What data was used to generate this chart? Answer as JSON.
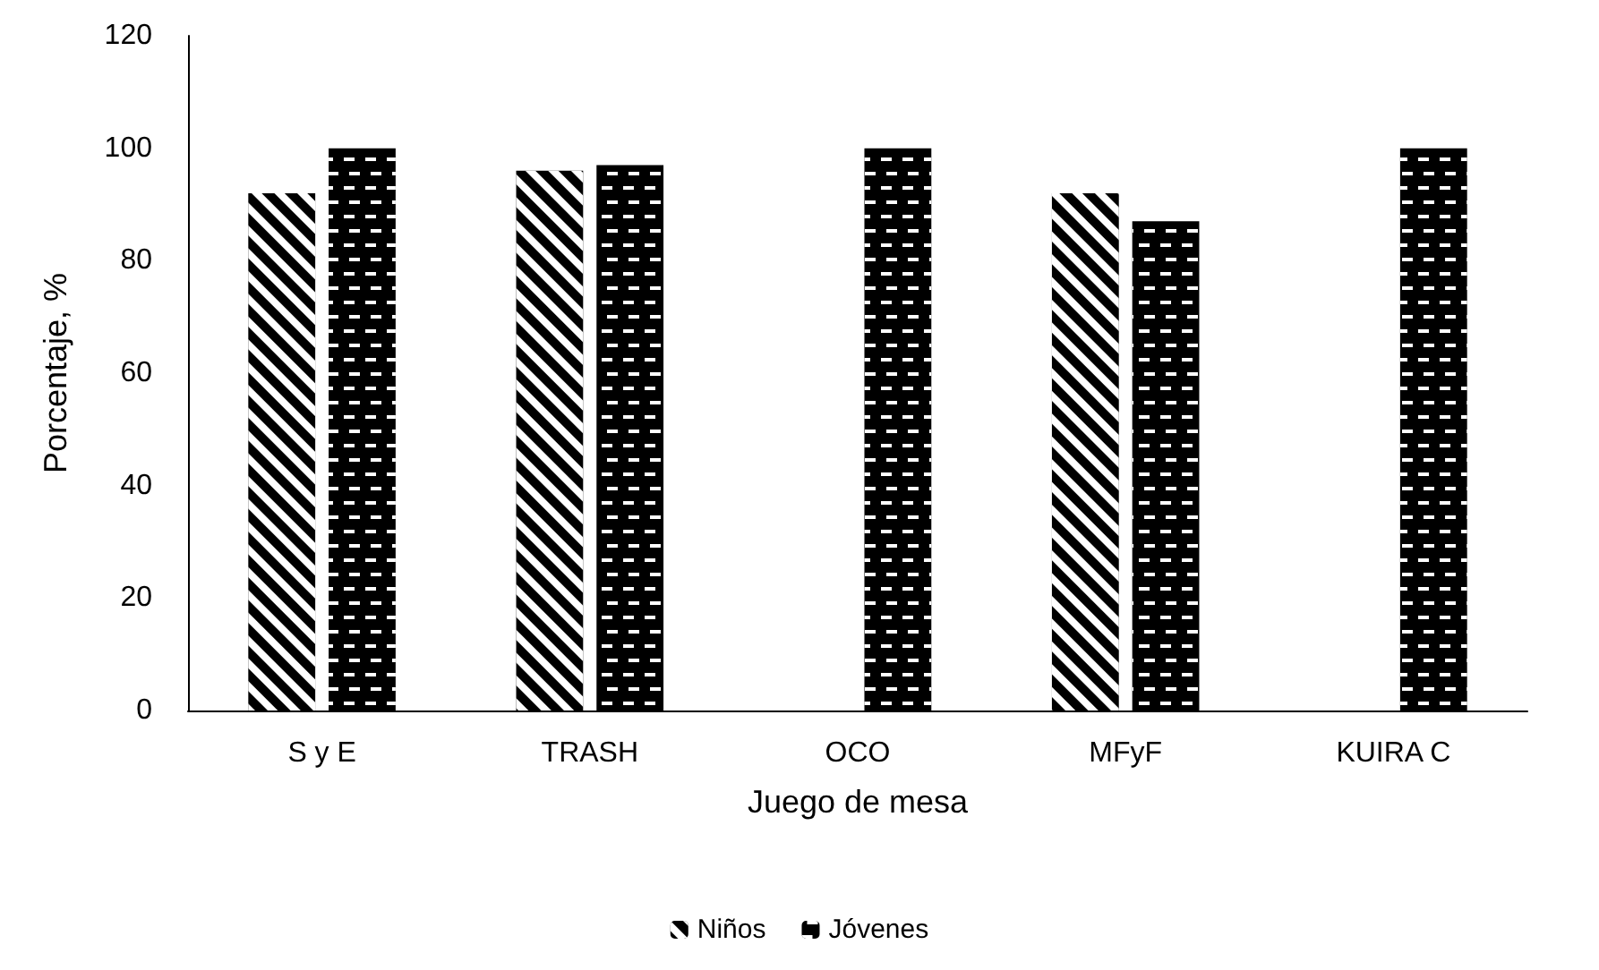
{
  "chart_data": {
    "type": "bar",
    "xlabel": "Juego de mesa",
    "ylabel": "Porcentaje, %",
    "categories": [
      "S y E",
      "TRASH",
      "OCO",
      "MFyF",
      "KUIRA C"
    ],
    "series": [
      {
        "name": "Niños",
        "color": "#000000",
        "values": [
          92,
          96,
          0,
          92,
          0
        ]
      },
      {
        "name": "Jóvenes",
        "color": "#000000",
        "values": [
          100,
          97,
          100,
          87,
          100
        ]
      }
    ],
    "ylim": [
      0,
      120
    ],
    "yticks": [
      0,
      20,
      40,
      60,
      80,
      100,
      120
    ],
    "grid": false,
    "legend": "bottom"
  }
}
